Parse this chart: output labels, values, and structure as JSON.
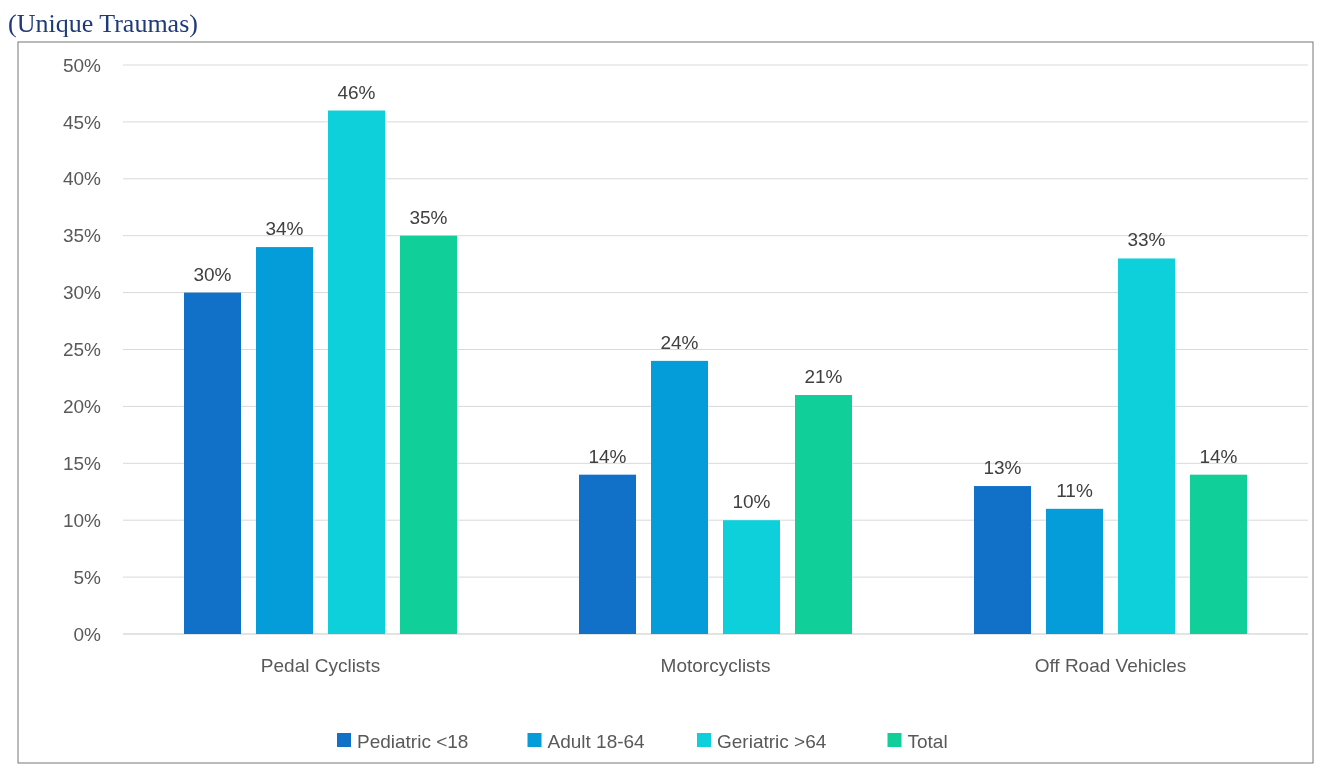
{
  "chart_data": {
    "type": "bar",
    "title": "(Unique Traumas)",
    "categories": [
      "Pedal Cyclists",
      "Motorcyclists",
      "Off Road Vehicles"
    ],
    "series": [
      {
        "name": "Pediatric <18",
        "color": "#1170c8",
        "values": [
          30,
          14,
          13
        ],
        "value_labels": [
          "30%",
          "14%",
          "13%"
        ]
      },
      {
        "name": "Adult 18-64",
        "color": "#049dd9",
        "values": [
          34,
          24,
          11
        ],
        "value_labels": [
          "34%",
          "24%",
          "11%"
        ]
      },
      {
        "name": "Geriatric >64",
        "color": "#0dd0da",
        "values": [
          46,
          10,
          33
        ],
        "value_labels": [
          "46%",
          "10%",
          "33%"
        ]
      },
      {
        "name": "Total",
        "color": "#10cf98",
        "values": [
          35,
          21,
          14
        ],
        "value_labels": [
          "35%",
          "21%",
          "14%"
        ]
      }
    ],
    "ylim": [
      0,
      50
    ],
    "yticks": [
      {
        "value": 0,
        "label": "0%"
      },
      {
        "value": 5,
        "label": "5%"
      },
      {
        "value": 10,
        "label": "10%"
      },
      {
        "value": 15,
        "label": "15%"
      },
      {
        "value": 20,
        "label": "20%"
      },
      {
        "value": 25,
        "label": "25%"
      },
      {
        "value": 30,
        "label": "30%"
      },
      {
        "value": 35,
        "label": "35%"
      },
      {
        "value": 40,
        "label": "40%"
      },
      {
        "value": 45,
        "label": "45%"
      },
      {
        "value": 50,
        "label": "50%"
      }
    ],
    "grid": "y",
    "legend": "bottom"
  }
}
